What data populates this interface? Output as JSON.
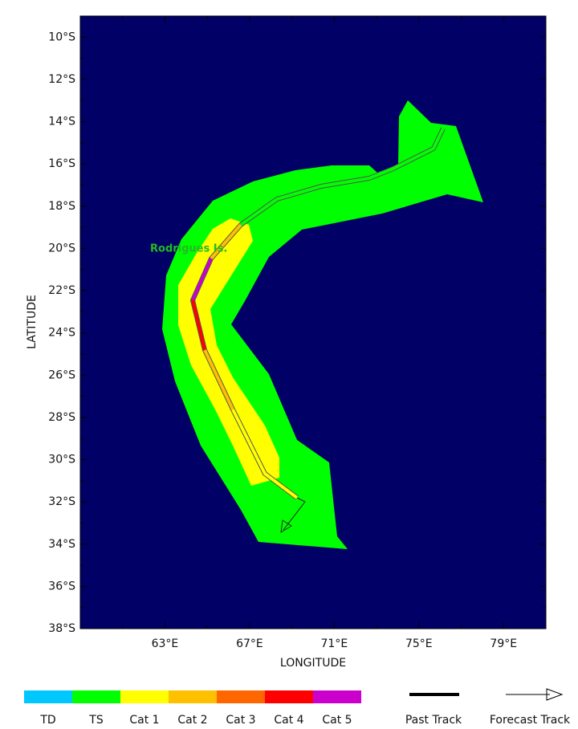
{
  "map": {
    "x_label": "LONGITUDE",
    "y_label": "LATITUDE",
    "xlim": [
      59,
      81
    ],
    "ylim": [
      -38,
      -9
    ],
    "xticks": [
      {
        "value": 63,
        "label": "63°E"
      },
      {
        "value": 67,
        "label": "67°E"
      },
      {
        "value": 71,
        "label": "71°E"
      },
      {
        "value": 75,
        "label": "75°E"
      },
      {
        "value": 79,
        "label": "79°E"
      }
    ],
    "x_minor_ticks": [
      61,
      65,
      69,
      73,
      77
    ],
    "yticks": [
      {
        "value": -10,
        "label": "10°S"
      },
      {
        "value": -12,
        "label": "12°S"
      },
      {
        "value": -14,
        "label": "14°S"
      },
      {
        "value": -16,
        "label": "16°S"
      },
      {
        "value": -18,
        "label": "18°S"
      },
      {
        "value": -20,
        "label": "20°S"
      },
      {
        "value": -22,
        "label": "22°S"
      },
      {
        "value": -24,
        "label": "24°S"
      },
      {
        "value": -26,
        "label": "26°S"
      },
      {
        "value": -28,
        "label": "28°S"
      },
      {
        "value": -30,
        "label": "30°S"
      },
      {
        "value": -32,
        "label": "32°S"
      },
      {
        "value": -34,
        "label": "34°S"
      },
      {
        "value": -36,
        "label": "36°S"
      },
      {
        "value": -38,
        "label": "38°S"
      }
    ],
    "y_minor_ticks": [
      -11,
      -13,
      -15,
      -17,
      -19,
      -21,
      -23,
      -25,
      -27,
      -29,
      -31,
      -33,
      -35,
      -37
    ],
    "place_label": "Rodrigues Is.",
    "ocean_color": "#000066"
  },
  "legend": {
    "categories": [
      {
        "label": "TD",
        "color": "#00c8ff"
      },
      {
        "label": "TS",
        "color": "#00ff00"
      },
      {
        "label": "Cat 1",
        "color": "#ffff00"
      },
      {
        "label": "Cat 2",
        "color": "#ffc000"
      },
      {
        "label": "Cat 3",
        "color": "#ff6600"
      },
      {
        "label": "Cat 4",
        "color": "#ff0000"
      },
      {
        "label": "Cat 5",
        "color": "#cc00cc"
      }
    ],
    "past_track": "Past Track",
    "forecast_track": "Forecast Track"
  }
}
